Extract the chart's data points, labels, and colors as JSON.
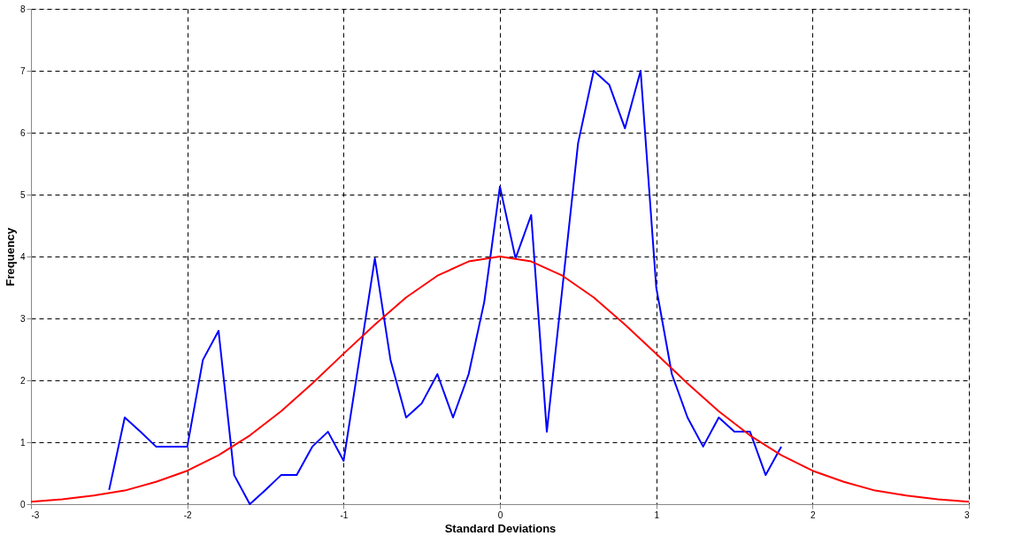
{
  "chart_data": {
    "type": "line",
    "xlabel": "Standard Deviations",
    "ylabel": "Frequency",
    "xlim": [
      -3,
      3
    ],
    "ylim": [
      0,
      8
    ],
    "xticks": [
      -3,
      -2,
      -1,
      0,
      1,
      2,
      3
    ],
    "yticks": [
      0,
      1,
      2,
      3,
      4,
      5,
      6,
      7,
      8
    ],
    "grid": true,
    "marker": "none",
    "line_style": "solid",
    "series": [
      {
        "color": "#0000ff",
        "x": [
          -2.5,
          -2.4,
          -2.3,
          -2.2,
          -2.1,
          -2.0,
          -1.9,
          -1.8,
          -1.7,
          -1.6,
          -1.5,
          -1.4,
          -1.3,
          -1.2,
          -1.1,
          -1.0,
          -0.9,
          -0.8,
          -0.7,
          -0.6,
          -0.5,
          -0.4,
          -0.3,
          -0.2,
          -0.1,
          0,
          0.1,
          0.2,
          0.3,
          0.4,
          0.5,
          0.6,
          0.7,
          0.8,
          0.9,
          1.0,
          1.1,
          1.2,
          1.3,
          1.4,
          1.5,
          1.6,
          1.7,
          1.8
        ],
        "values": [
          0.23,
          1.4,
          1.17,
          0.93,
          0.93,
          0.93,
          2.33,
          2.8,
          0.47,
          0,
          0.23,
          0.47,
          0.47,
          0.93,
          1.17,
          0.7,
          2.33,
          3.97,
          2.33,
          1.4,
          1.63,
          2.1,
          1.4,
          2.1,
          3.27,
          5.13,
          3.97,
          4.67,
          1.17,
          3.5,
          5.83,
          7.0,
          6.77,
          6.07,
          7.0,
          3.5,
          2.1,
          1.4,
          0.93,
          1.4,
          1.17,
          1.17,
          0.47,
          0.93
        ]
      },
      {
        "color": "#ff0000",
        "x": [
          -3,
          -2.8,
          -2.6,
          -2.4,
          -2.2,
          -2,
          -1.8,
          -1.6,
          -1.4,
          -1.2,
          -1,
          -0.8,
          -0.6,
          -0.4,
          -0.2,
          0,
          0.2,
          0.4,
          0.6,
          0.8,
          1,
          1.2,
          1.4,
          1.6,
          1.8,
          2,
          2.2,
          2.4,
          2.6,
          2.8,
          3
        ],
        "values": [
          0.04,
          0.08,
          0.14,
          0.22,
          0.36,
          0.54,
          0.79,
          1.11,
          1.5,
          1.95,
          2.43,
          2.9,
          3.34,
          3.69,
          3.92,
          4,
          3.92,
          3.69,
          3.34,
          2.9,
          2.43,
          1.95,
          1.5,
          1.11,
          0.79,
          0.54,
          0.36,
          0.22,
          0.14,
          0.08,
          0.04
        ]
      }
    ]
  }
}
